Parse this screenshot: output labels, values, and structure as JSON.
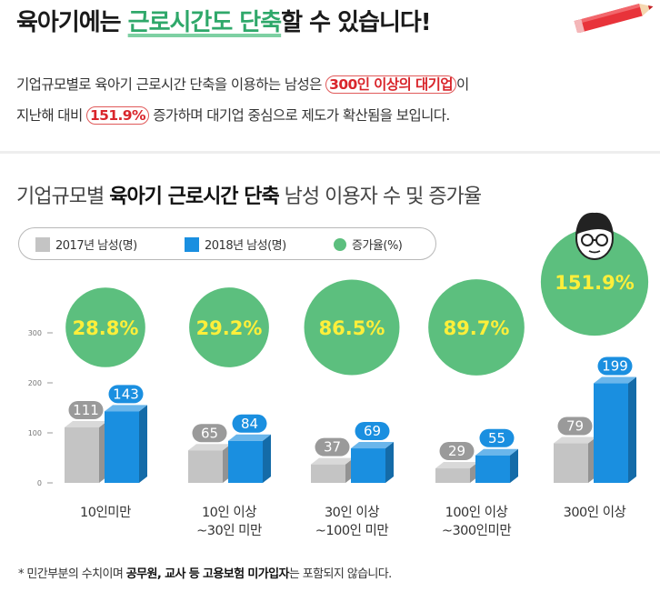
{
  "headline": {
    "part1": "육아기에는 ",
    "highlight": "근로시간도 단축",
    "part2": "할 수 있습니다!"
  },
  "intro": {
    "line1_a": "기업규모별로 육아기 근로시간 단축을 이용하는 남성은 ",
    "line1_em": "300인 이상의 대기업",
    "line1_b": "이",
    "line2_a": "지난해 대비 ",
    "line2_em": "151.9%",
    "line2_b": " 증가하며 대기업 중심으로 제도가 확산됨을 보입니다."
  },
  "footnote": {
    "a": "* 민간부분의 수치이며 ",
    "b": "공무원, 교사 등 고용보험 미가입자",
    "c": "는 포함되지 않습니다."
  },
  "colors": {
    "series2017": "#c4c4c4",
    "series2018": "#1a8fe0",
    "rate": "#5cbf7e",
    "rate_text": "#ffef3a",
    "accent": "#d9262c"
  },
  "icons": [
    "pencil-icon",
    "person-face-icon"
  ],
  "chart_data": {
    "type": "bar",
    "title": "기업규모별 육아기 근로시간 단축 남성 이용자 수 및 증가율",
    "title_parts": {
      "pre": "기업규모별 ",
      "bold": "육아기 근로시간 단축",
      "post": " 남성 이용자 수 및 증가율"
    },
    "categories": [
      [
        "10인미만"
      ],
      [
        "10인 이상",
        "~30인 미만"
      ],
      [
        "30인 이상",
        "~100인 미만"
      ],
      [
        "100인 이상",
        "~300인미만"
      ],
      [
        "300인 이상"
      ]
    ],
    "series": [
      {
        "name": "2017년 남성(명)",
        "values": [
          111,
          65,
          37,
          29,
          79
        ]
      },
      {
        "name": "2018년 남성(명)",
        "values": [
          143,
          84,
          69,
          55,
          199
        ]
      }
    ],
    "growth": {
      "name": "증가율(%)",
      "labels": [
        "28.8%",
        "29.2%",
        "86.5%",
        "89.7%",
        "151.9%"
      ],
      "values": [
        28.8,
        29.2,
        86.5,
        89.7,
        151.9
      ]
    },
    "yticks": [
      0,
      100,
      200,
      300
    ],
    "ylim": [
      0,
      300
    ],
    "legend": "top-left",
    "grid": false
  }
}
